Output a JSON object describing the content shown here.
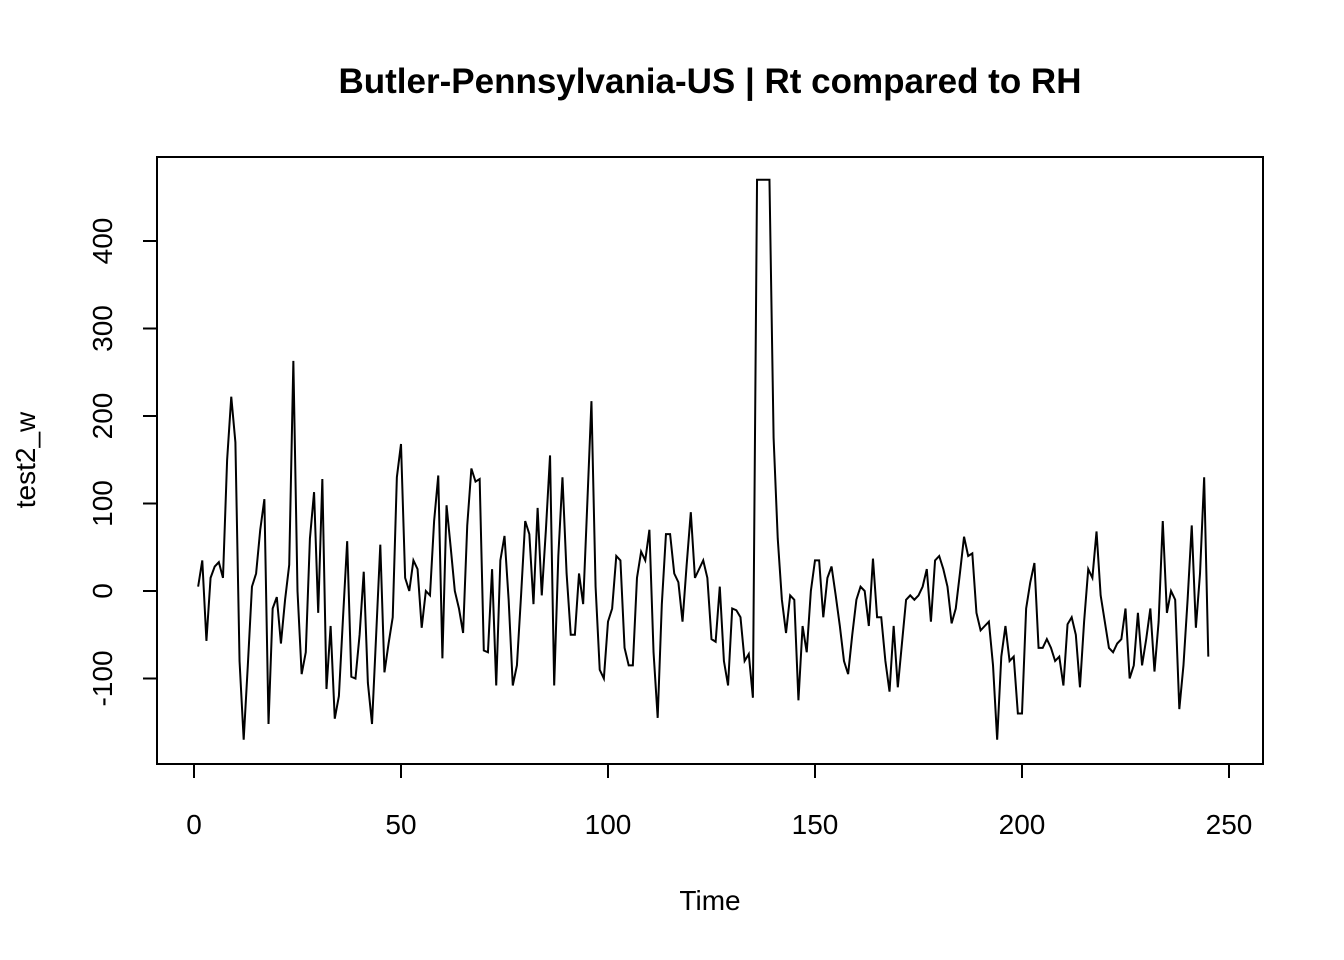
{
  "chart_data": {
    "type": "line",
    "title": "Butler-Pennsylvania-US | Rt compared to RH",
    "xlabel": "Time",
    "ylabel": "test2_w",
    "xlim": [
      0,
      250
    ],
    "ylim": [
      -170,
      470
    ],
    "x_ticks": [
      0,
      50,
      100,
      150,
      200,
      250
    ],
    "y_ticks": [
      -100,
      0,
      100,
      200,
      300,
      400
    ],
    "grid": false,
    "legend": "none",
    "line_color": "#000000",
    "series": [
      {
        "x_start": 1,
        "x_step": 1,
        "values": [
          5,
          35,
          -57,
          15,
          28,
          33,
          15,
          150,
          222,
          170,
          -80,
          -170,
          -85,
          5,
          20,
          70,
          105,
          -152,
          -20,
          -7,
          -60,
          -10,
          30,
          263,
          0,
          -95,
          -70,
          60,
          113,
          -25,
          128,
          -112,
          -40,
          -146,
          -120,
          -30,
          57,
          -98,
          -100,
          -50,
          22,
          -105,
          -152,
          -50,
          53,
          -93,
          -60,
          -30,
          130,
          168,
          15,
          0,
          35,
          25,
          -42,
          0,
          -5,
          80,
          132,
          -77,
          98,
          50,
          0,
          -20,
          -48,
          75,
          140,
          125,
          128,
          -68,
          -70,
          25,
          -108,
          35,
          63,
          -10,
          -108,
          -85,
          -5,
          80,
          65,
          -15,
          95,
          -5,
          70,
          155,
          -108,
          40,
          130,
          20,
          -50,
          -50,
          20,
          -15,
          100,
          217,
          5,
          -90,
          -100,
          -35,
          -20,
          40,
          35,
          -65,
          -85,
          -85,
          15,
          45,
          35,
          70,
          -70,
          -145,
          -15,
          65,
          65,
          20,
          10,
          -35,
          30,
          90,
          15,
          25,
          35,
          15,
          -55,
          -58,
          5,
          -80,
          -108,
          -20,
          -22,
          -30,
          -80,
          -72,
          -122,
          470,
          470,
          470,
          470,
          175,
          60,
          -10,
          -48,
          -5,
          -10,
          -125,
          -40,
          -70,
          0,
          35,
          35,
          -30,
          15,
          28,
          -5,
          -40,
          -80,
          -95,
          -50,
          -10,
          5,
          0,
          -40,
          37,
          -30,
          -30,
          -80,
          -115,
          -40,
          -110,
          -60,
          -10,
          -5,
          -10,
          -5,
          5,
          25,
          -35,
          35,
          40,
          25,
          5,
          -37,
          -20,
          20,
          62,
          40,
          43,
          -25,
          -45,
          -40,
          -35,
          -85,
          -170,
          -75,
          -40,
          -80,
          -75,
          -140,
          -140,
          -20,
          10,
          32,
          -65,
          -65,
          -55,
          -65,
          -80,
          -75,
          -108,
          -38,
          -30,
          -50,
          -110,
          -35,
          25,
          15,
          68,
          -5,
          -35,
          -65,
          -70,
          -60,
          -55,
          -20,
          -100,
          -85,
          -25,
          -85,
          -55,
          -20,
          -92,
          -35,
          80,
          -25,
          0,
          -10,
          -135,
          -85,
          -10,
          75,
          -42,
          20,
          130,
          -75
        ]
      }
    ]
  }
}
